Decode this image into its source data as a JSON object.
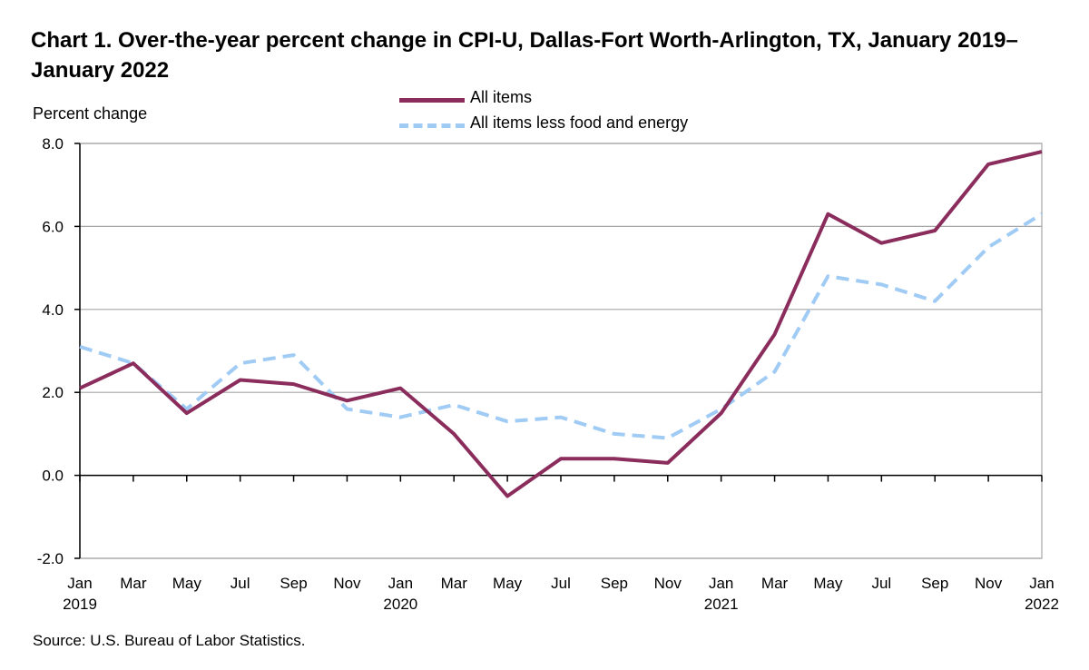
{
  "chart_data": {
    "type": "line",
    "title": "Chart 1. Over-the-year percent change in CPI-U, Dallas-Fort Worth-Arlington, TX, January 2019–January 2022",
    "ylabel": "Percent change",
    "xlabel": "",
    "ylim": [
      -2.0,
      8.0
    ],
    "yticks": [
      "-2.0",
      "0.0",
      "2.0",
      "4.0",
      "6.0",
      "8.0"
    ],
    "grid": true,
    "legend_position": "top-center",
    "x_tick_labels": [
      {
        "month": "Jan",
        "year": "2019"
      },
      {
        "month": "Mar",
        "year": ""
      },
      {
        "month": "May",
        "year": ""
      },
      {
        "month": "Jul",
        "year": ""
      },
      {
        "month": "Sep",
        "year": ""
      },
      {
        "month": "Nov",
        "year": ""
      },
      {
        "month": "Jan",
        "year": "2020"
      },
      {
        "month": "Mar",
        "year": ""
      },
      {
        "month": "May",
        "year": ""
      },
      {
        "month": "Jul",
        "year": ""
      },
      {
        "month": "Sep",
        "year": ""
      },
      {
        "month": "Nov",
        "year": ""
      },
      {
        "month": "Jan",
        "year": "2021"
      },
      {
        "month": "Mar",
        "year": ""
      },
      {
        "month": "May",
        "year": ""
      },
      {
        "month": "Jul",
        "year": ""
      },
      {
        "month": "Sep",
        "year": ""
      },
      {
        "month": "Nov",
        "year": ""
      },
      {
        "month": "Jan",
        "year": "2022"
      }
    ],
    "series": [
      {
        "name": "All items",
        "color": "#8b2d5c",
        "style": "solid",
        "values": [
          2.1,
          2.7,
          1.5,
          2.3,
          2.2,
          1.8,
          2.1,
          1.0,
          -0.5,
          0.4,
          0.4,
          0.3,
          1.5,
          3.4,
          6.3,
          5.6,
          5.9,
          7.5,
          7.8
        ]
      },
      {
        "name": "All items less food and energy",
        "color": "#9fcbf5",
        "style": "dashed",
        "values": [
          3.1,
          2.7,
          1.6,
          2.7,
          2.9,
          1.6,
          1.4,
          1.7,
          1.3,
          1.4,
          1.0,
          0.9,
          1.6,
          2.5,
          4.8,
          4.6,
          4.2,
          5.5,
          6.3
        ]
      }
    ],
    "source": "Source: U.S. Bureau of Labor Statistics."
  },
  "colors": {
    "grid": "#a6a6a6",
    "axis": "#000000"
  }
}
